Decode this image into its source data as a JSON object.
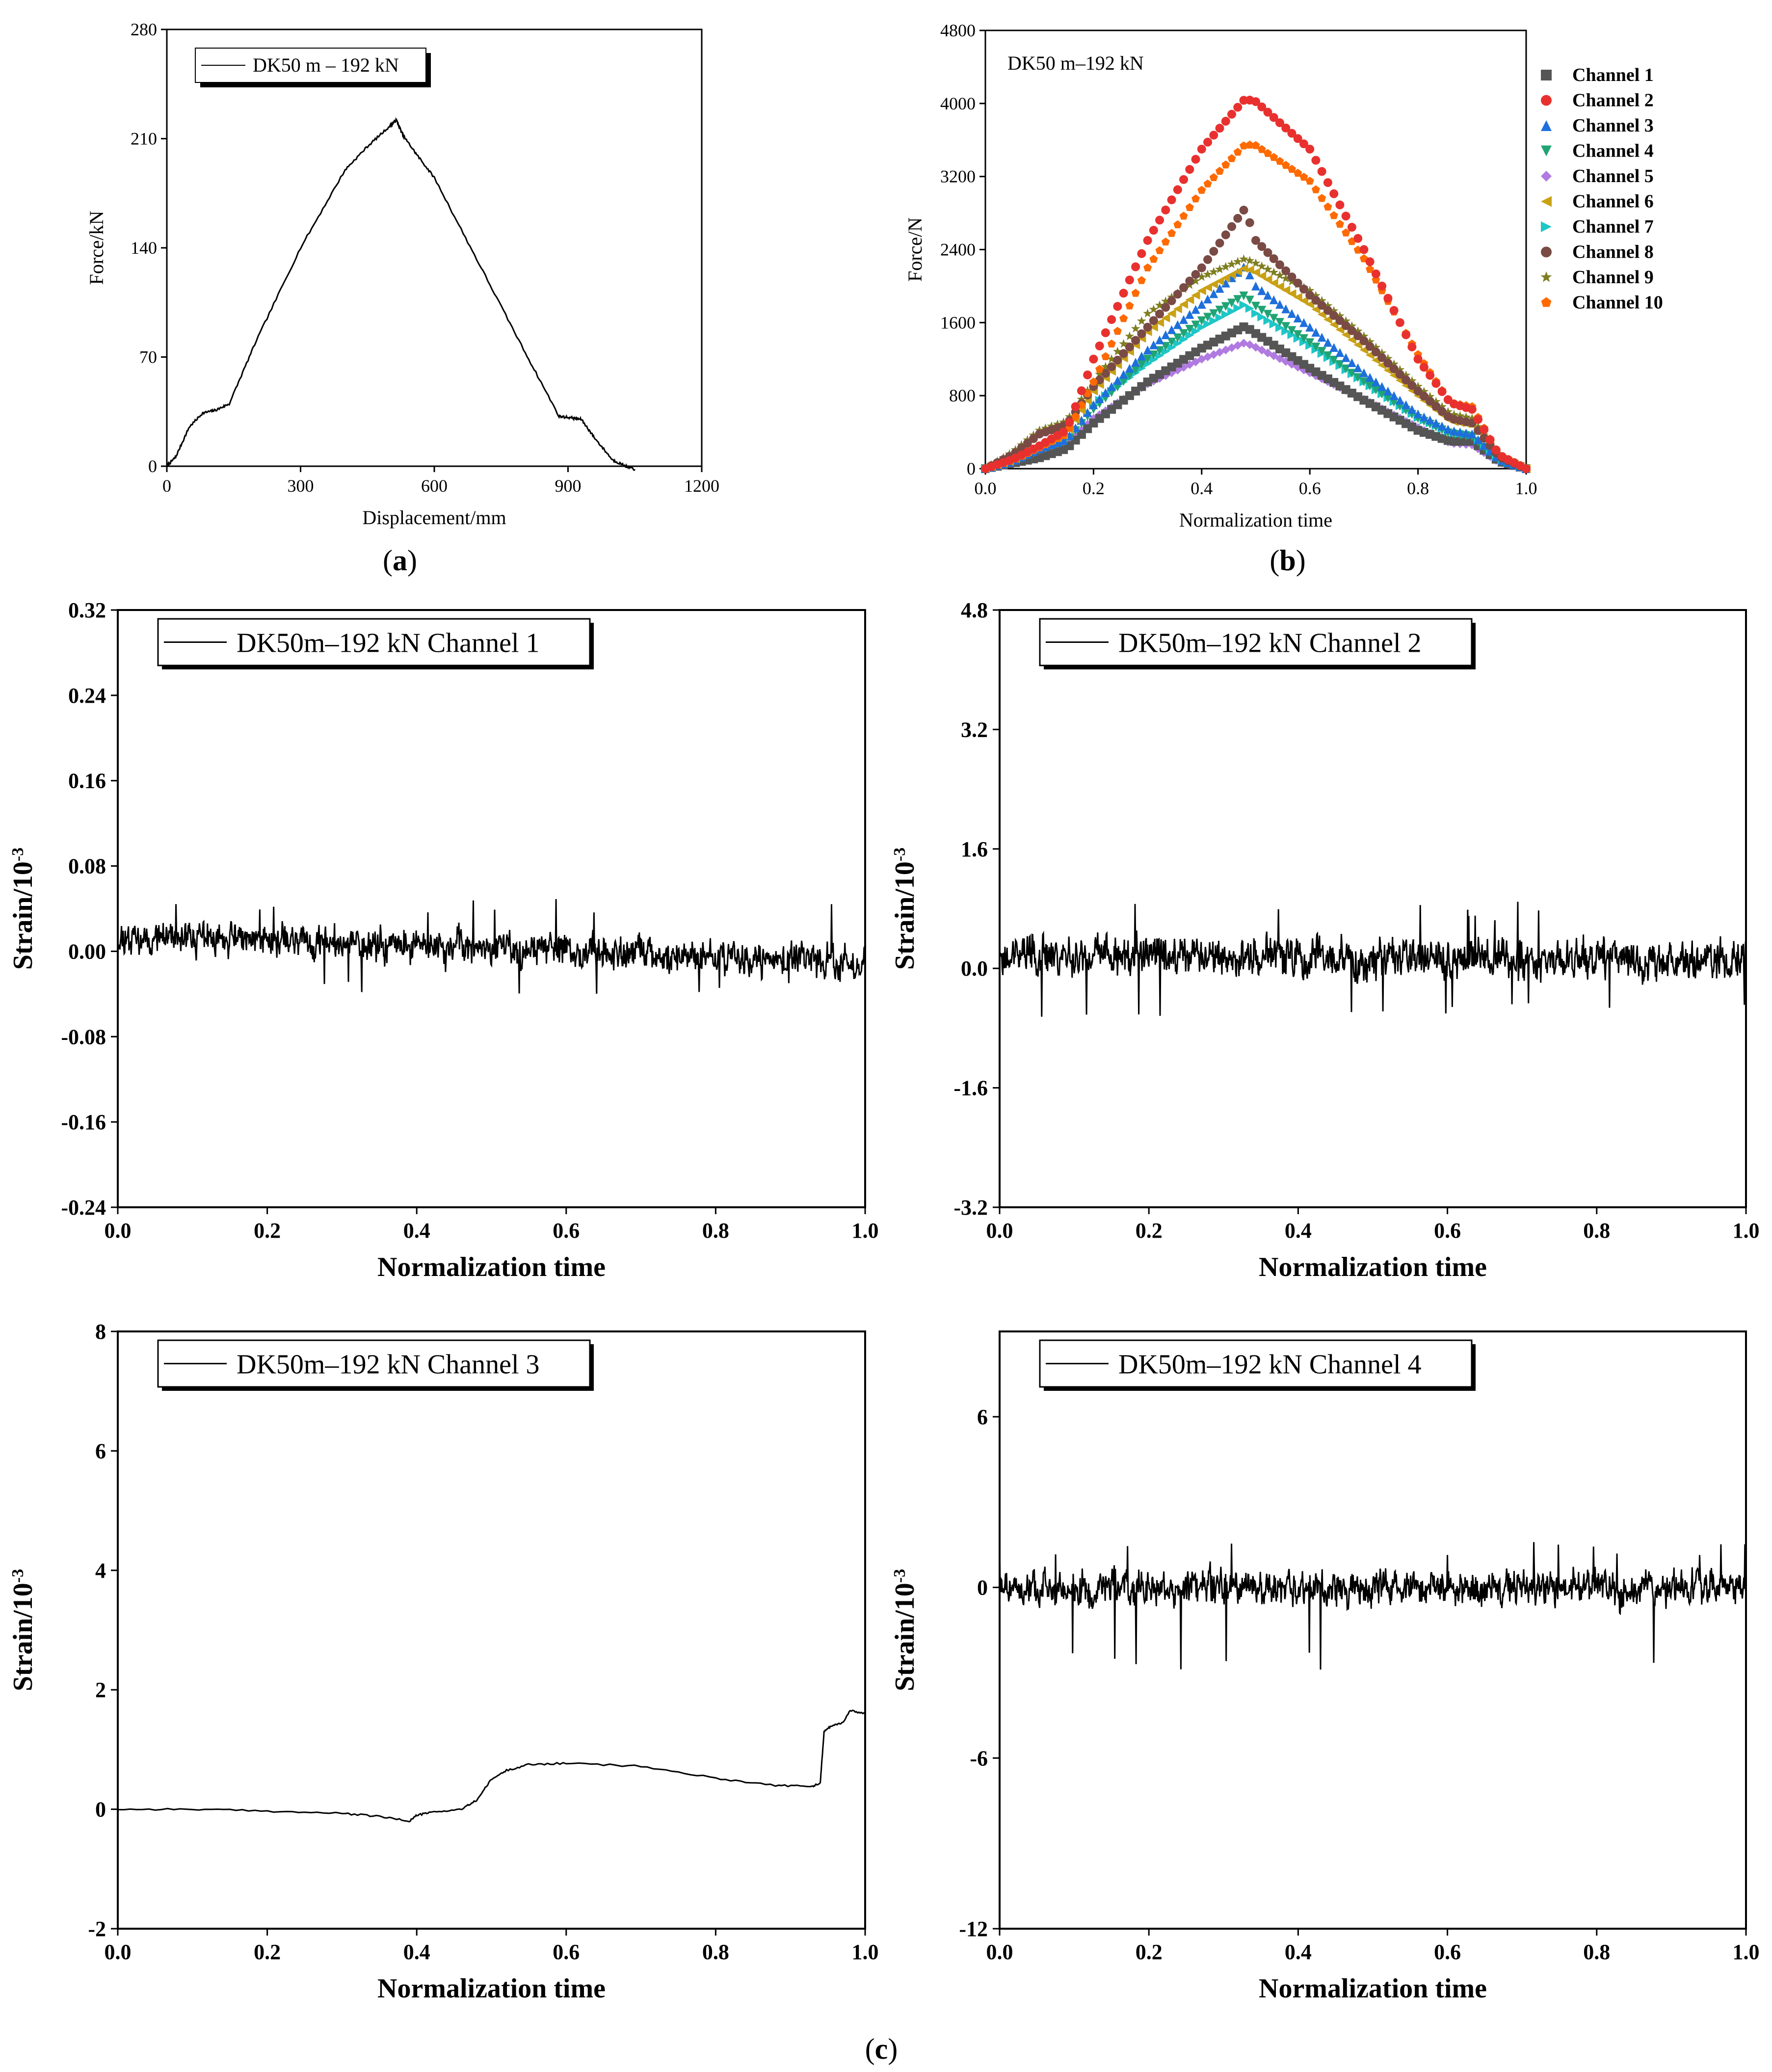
{
  "colors": {
    "text": "#000000",
    "axis": "#000000",
    "channels": [
      "#555555",
      "#e8312f",
      "#1e6fdc",
      "#21a374",
      "#b07ae0",
      "#c9a114",
      "#1fc6c6",
      "#7a4a45",
      "#7e7e20",
      "#ff6a00"
    ]
  },
  "captions": {
    "a": "a",
    "b": "b",
    "c": "c"
  },
  "chart_data": [
    {
      "id": "a",
      "type": "line",
      "title": "",
      "xlabel": "Displacement/mm",
      "ylabel": "Force/kN",
      "xlim": [
        0,
        1200
      ],
      "ylim": [
        0,
        280
      ],
      "xticks": [
        "0",
        "300",
        "600",
        "900",
        "1200"
      ],
      "yticks": [
        "0",
        "70",
        "140",
        "210",
        "280"
      ],
      "legend": [
        "DK50 m – 192 kN"
      ],
      "series": [
        {
          "name": "DK50 m – 192 kN",
          "x": [
            0,
            20,
            50,
            80,
            110,
            140,
            200,
            300,
            400,
            450,
            500,
            515,
            530,
            560,
            600,
            700,
            800,
            880,
            910,
            930,
            960,
            1000,
            1030,
            1050
          ],
          "y": [
            0,
            6,
            25,
            34,
            36,
            40,
            80,
            140,
            190,
            205,
            218,
            222,
            212,
            200,
            185,
            130,
            75,
            32,
            31,
            30,
            18,
            4,
            0,
            -2
          ]
        }
      ]
    },
    {
      "id": "b",
      "type": "scatter",
      "title": "",
      "annotation": "DK50 m–192 kN",
      "xlabel": "Normalization time",
      "ylabel": "Force/N",
      "xlim": [
        0,
        1.0
      ],
      "ylim": [
        0,
        4800
      ],
      "xticks": [
        "0.0",
        "0.2",
        "0.4",
        "0.6",
        "0.8",
        "1.0"
      ],
      "yticks": [
        "0",
        "800",
        "1600",
        "2400",
        "3200",
        "4000",
        "4800"
      ],
      "legend": [
        "Channel 1",
        "Channel 2",
        "Channel 3",
        "Channel 4",
        "Channel 5",
        "Channel 6",
        "Channel 7",
        "Channel 8",
        "Channel 9",
        "Channel 10"
      ],
      "series": [
        {
          "name": "Channel 1",
          "marker": "square",
          "x": [
            0,
            0.05,
            0.1,
            0.15,
            0.2,
            0.3,
            0.4,
            0.48,
            0.5,
            0.6,
            0.7,
            0.8,
            0.86,
            0.9,
            0.95,
            1.0
          ],
          "y": [
            0,
            60,
            120,
            220,
            500,
            950,
            1320,
            1560,
            1480,
            1100,
            750,
            420,
            300,
            300,
            80,
            0
          ]
        },
        {
          "name": "Channel 2",
          "marker": "circle",
          "x": [
            0,
            0.05,
            0.1,
            0.15,
            0.2,
            0.3,
            0.4,
            0.48,
            0.5,
            0.6,
            0.7,
            0.8,
            0.86,
            0.9,
            0.95,
            1.0
          ],
          "y": [
            0,
            100,
            250,
            420,
            1200,
            2500,
            3500,
            4050,
            4020,
            3500,
            2400,
            1200,
            720,
            650,
            150,
            0
          ]
        },
        {
          "name": "Channel 3",
          "marker": "triangle-up",
          "x": [
            0,
            0.05,
            0.1,
            0.15,
            0.2,
            0.3,
            0.4,
            0.48,
            0.5,
            0.6,
            0.7,
            0.8,
            0.86,
            0.9,
            0.95,
            1.0
          ],
          "y": [
            0,
            80,
            220,
            320,
            700,
            1300,
            1800,
            2220,
            2000,
            1550,
            1050,
            600,
            420,
            380,
            100,
            0
          ]
        },
        {
          "name": "Channel 4",
          "marker": "triangle-down",
          "x": [
            0,
            0.05,
            0.1,
            0.15,
            0.2,
            0.3,
            0.4,
            0.48,
            0.5,
            0.6,
            0.7,
            0.8,
            0.86,
            0.9,
            0.95,
            1.0
          ],
          "y": [
            0,
            70,
            200,
            300,
            650,
            1200,
            1620,
            1900,
            1780,
            1380,
            950,
            550,
            380,
            350,
            90,
            0
          ]
        },
        {
          "name": "Channel 5",
          "marker": "diamond",
          "x": [
            0,
            0.05,
            0.1,
            0.15,
            0.2,
            0.3,
            0.4,
            0.48,
            0.5,
            0.6,
            0.7,
            0.8,
            0.86,
            0.9,
            0.95,
            1.0
          ],
          "y": [
            0,
            60,
            180,
            260,
            550,
            930,
            1200,
            1380,
            1330,
            1050,
            760,
            450,
            280,
            260,
            70,
            0
          ]
        },
        {
          "name": "Channel 6",
          "marker": "triangle-left",
          "x": [
            0,
            0.05,
            0.1,
            0.15,
            0.2,
            0.3,
            0.4,
            0.48,
            0.5,
            0.6,
            0.7,
            0.8,
            0.86,
            0.9,
            0.95,
            1.0
          ],
          "y": [
            0,
            90,
            260,
            380,
            850,
            1500,
            1950,
            2200,
            2150,
            1800,
            1300,
            800,
            520,
            480,
            120,
            0
          ]
        },
        {
          "name": "Channel 7",
          "marker": "triangle-right",
          "x": [
            0,
            0.05,
            0.1,
            0.15,
            0.2,
            0.3,
            0.4,
            0.48,
            0.5,
            0.6,
            0.7,
            0.8,
            0.86,
            0.9,
            0.95,
            1.0
          ],
          "y": [
            0,
            75,
            210,
            300,
            700,
            1150,
            1550,
            1800,
            1700,
            1350,
            950,
            560,
            400,
            370,
            100,
            0
          ]
        },
        {
          "name": "Channel 8",
          "marker": "circle",
          "x": [
            0,
            0.05,
            0.1,
            0.15,
            0.2,
            0.3,
            0.4,
            0.48,
            0.5,
            0.6,
            0.7,
            0.8,
            0.86,
            0.9,
            0.95,
            1.0
          ],
          "y": [
            0,
            150,
            380,
            480,
            900,
            1550,
            2200,
            2850,
            2500,
            1900,
            1400,
            850,
            550,
            500,
            130,
            0
          ]
        },
        {
          "name": "Channel 9",
          "marker": "star",
          "x": [
            0,
            0.05,
            0.1,
            0.15,
            0.2,
            0.3,
            0.4,
            0.48,
            0.5,
            0.6,
            0.7,
            0.8,
            0.86,
            0.9,
            0.95,
            1.0
          ],
          "y": [
            0,
            180,
            420,
            520,
            950,
            1700,
            2100,
            2300,
            2250,
            1950,
            1450,
            900,
            600,
            550,
            140,
            0
          ]
        },
        {
          "name": "Channel 10",
          "marker": "pentagon",
          "x": [
            0,
            0.05,
            0.1,
            0.15,
            0.2,
            0.3,
            0.4,
            0.48,
            0.5,
            0.6,
            0.7,
            0.8,
            0.86,
            0.9,
            0.95,
            1.0
          ],
          "y": [
            0,
            90,
            230,
            380,
            950,
            2200,
            3050,
            3550,
            3540,
            3150,
            2300,
            1250,
            720,
            680,
            150,
            0
          ]
        }
      ]
    },
    {
      "id": "c1",
      "type": "line",
      "title": "",
      "xlabel": "Normalization time",
      "ylabel": "Strain/10",
      "ylabel_exponent": "-3",
      "xlim": [
        0,
        1.0
      ],
      "ylim": [
        -0.24,
        0.32
      ],
      "xticks": [
        "0.0",
        "0.2",
        "0.4",
        "0.6",
        "0.8",
        "1.0"
      ],
      "yticks": [
        "-0.24",
        "-0.16",
        "-0.08",
        "0.00",
        "0.08",
        "0.16",
        "0.24",
        "0.32"
      ],
      "legend": [
        "DK50m–192 kN Channel 1"
      ],
      "series": [
        {
          "name": "DK50m–192 kN Channel 1",
          "noise": {
            "baseline": 0.0,
            "amplitude": 0.02,
            "trend": [
              0.015,
              -0.01
            ],
            "spikes": [
              0.05,
              -0.04
            ]
          }
        }
      ]
    },
    {
      "id": "c2",
      "type": "line",
      "title": "",
      "xlabel": "Normalization time",
      "ylabel": "Strain/10",
      "ylabel_exponent": "-3",
      "xlim": [
        0,
        1.0
      ],
      "ylim": [
        -3.2,
        4.8
      ],
      "xticks": [
        "0.0",
        "0.2",
        "0.4",
        "0.6",
        "0.8",
        "1.0"
      ],
      "yticks": [
        "-3.2",
        "-1.6",
        "0.0",
        "1.6",
        "3.2",
        "4.8"
      ],
      "legend": [
        "DK50m–192 kN Channel 2"
      ],
      "series": [
        {
          "name": "DK50m–192 kN Channel 2",
          "noise": {
            "baseline": 0.15,
            "amplitude": 0.35,
            "trend": [
              0.2,
              0.1
            ],
            "spikes": [
              0.9,
              -0.65
            ]
          }
        }
      ]
    },
    {
      "id": "c3",
      "type": "line",
      "title": "",
      "xlabel": "Normalization time",
      "ylabel": "Strain/10",
      "ylabel_exponent": "-3",
      "xlim": [
        0,
        1.0
      ],
      "ylim": [
        -2,
        8
      ],
      "xticks": [
        "0.0",
        "0.2",
        "0.4",
        "0.6",
        "0.8",
        "1.0"
      ],
      "yticks": [
        "-2",
        "0",
        "2",
        "4",
        "6",
        "8"
      ],
      "legend": [
        "DK50m–192 kN Channel 3"
      ],
      "series": [
        {
          "name": "DK50m–192 kN Channel 3",
          "x": [
            0,
            0.1,
            0.2,
            0.3,
            0.35,
            0.39,
            0.4,
            0.42,
            0.46,
            0.48,
            0.5,
            0.52,
            0.55,
            0.6,
            0.7,
            0.8,
            0.88,
            0.93,
            0.94,
            0.945,
            0.955,
            0.97,
            0.98,
            1.0
          ],
          "y": [
            0,
            0.0,
            -0.03,
            -0.07,
            -0.12,
            -0.2,
            -0.1,
            -0.05,
            0.0,
            0.15,
            0.5,
            0.65,
            0.75,
            0.77,
            0.72,
            0.52,
            0.4,
            0.38,
            0.45,
            1.3,
            1.4,
            1.45,
            1.65,
            1.6
          ]
        }
      ]
    },
    {
      "id": "c4",
      "type": "line",
      "title": "",
      "xlabel": "Normalization time",
      "ylabel": "Strain/10",
      "ylabel_exponent": "-3",
      "xlim": [
        0,
        1.0
      ],
      "ylim": [
        -12,
        9
      ],
      "xticks": [
        "0.0",
        "0.2",
        "0.4",
        "0.6",
        "0.8",
        "1.0"
      ],
      "yticks": [
        "-12",
        "-6",
        "0",
        "6"
      ],
      "legend": [
        "DK50m–192 kN Channel 4"
      ],
      "series": [
        {
          "name": "DK50m–192 kN Channel 4",
          "noise": {
            "baseline": 0.0,
            "amplitude": 0.8,
            "trend": [
              0.0,
              0.0
            ],
            "spikes": [
              1.6,
              -3.0
            ]
          }
        }
      ]
    }
  ]
}
